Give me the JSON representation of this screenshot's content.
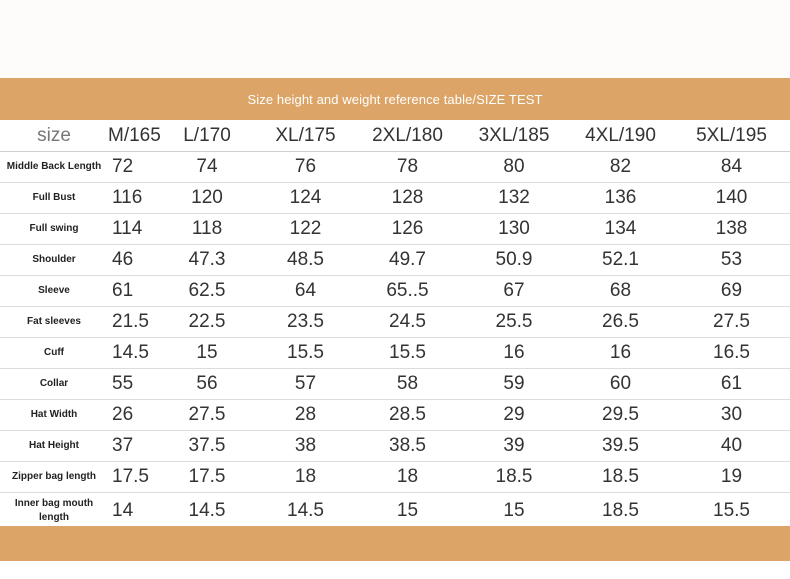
{
  "banner_title": "Size height and weight reference table/SIZE TEST",
  "colors": {
    "accent": "#dca466",
    "text": "#333333"
  },
  "header": {
    "label": "size",
    "sizes": [
      "M/165",
      "L/170",
      "XL/175",
      "2XL/180",
      "3XL/185",
      "4XL/190",
      "5XL/195"
    ]
  },
  "rows": [
    {
      "label": "Middle Back Length",
      "values": [
        "72",
        "74",
        "76",
        "78",
        "80",
        "82",
        "84"
      ]
    },
    {
      "label": "Full Bust",
      "values": [
        "116",
        "120",
        "124",
        "128",
        "132",
        "136",
        "140"
      ]
    },
    {
      "label": "Full swing",
      "values": [
        "114",
        "118",
        "122",
        "126",
        "130",
        "134",
        "138"
      ]
    },
    {
      "label": "Shoulder",
      "values": [
        "46",
        "47.3",
        "48.5",
        "49.7",
        "50.9",
        "52.1",
        "53"
      ]
    },
    {
      "label": "Sleeve",
      "values": [
        "61",
        "62.5",
        "64",
        "65..5",
        "67",
        "68",
        "69"
      ]
    },
    {
      "label": "Fat sleeves",
      "values": [
        "21.5",
        "22.5",
        "23.5",
        "24.5",
        "25.5",
        "26.5",
        "27.5"
      ]
    },
    {
      "label": "Cuff",
      "values": [
        "14.5",
        "15",
        "15.5",
        "15.5",
        "16",
        "16",
        "16.5"
      ]
    },
    {
      "label": "Collar",
      "values": [
        "55",
        "56",
        "57",
        "58",
        "59",
        "60",
        "61"
      ]
    },
    {
      "label": "Hat Width",
      "values": [
        "26",
        "27.5",
        "28",
        "28.5",
        "29",
        "29.5",
        "30"
      ]
    },
    {
      "label": "Hat Height",
      "values": [
        "37",
        "37.5",
        "38",
        "38.5",
        "39",
        "39.5",
        "40"
      ]
    },
    {
      "label": "Zipper bag length",
      "values": [
        "17.5",
        "17.5",
        "18",
        "18",
        "18.5",
        "18.5",
        "19"
      ]
    },
    {
      "label": "Inner bag mouth length",
      "values": [
        "14",
        "14.5",
        "14.5",
        "15",
        "15",
        "18.5",
        "15.5"
      ]
    }
  ]
}
